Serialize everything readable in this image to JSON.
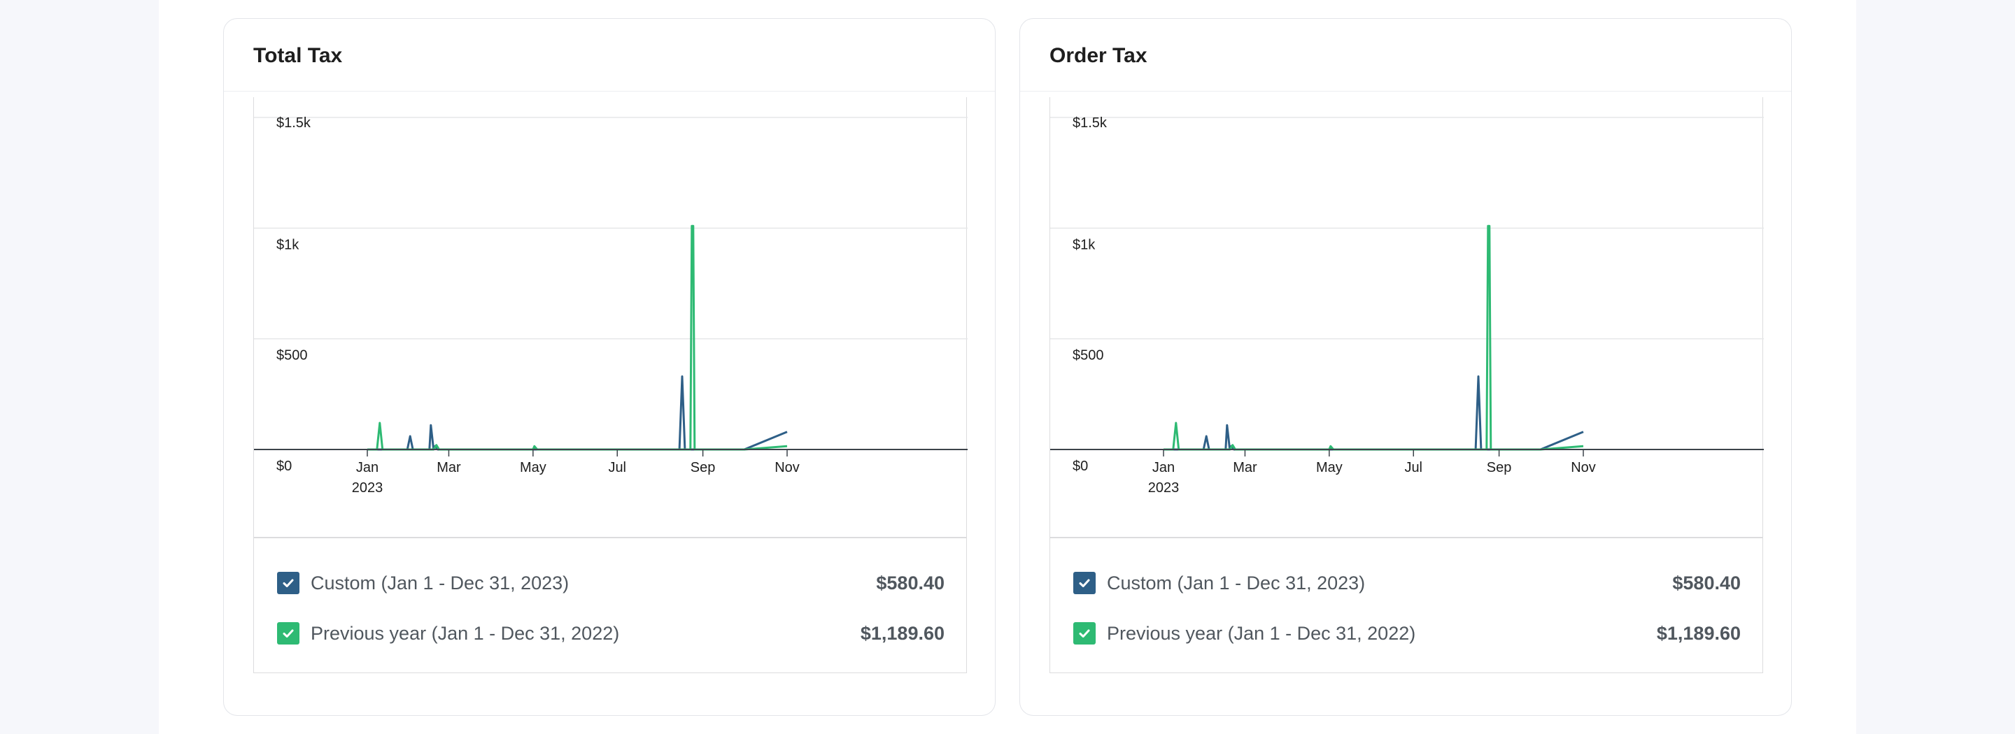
{
  "colors": {
    "primary_series": "#2e5f87",
    "comparison_series": "#2eba73"
  },
  "cards": [
    {
      "title": "Total Tax",
      "legend": [
        {
          "label": "Custom (Jan 1 - Dec 31, 2023)",
          "value": "$580.40",
          "color": "#2e5f87",
          "checked": true
        },
        {
          "label": "Previous year (Jan 1 - Dec 31, 2022)",
          "value": "$1,189.60",
          "color": "#2eba73",
          "checked": true
        }
      ]
    },
    {
      "title": "Order Tax",
      "legend": [
        {
          "label": "Custom (Jan 1 - Dec 31, 2023)",
          "value": "$580.40",
          "color": "#2e5f87",
          "checked": true
        },
        {
          "label": "Previous year (Jan 1 - Dec 31, 2022)",
          "value": "$1,189.60",
          "color": "#2eba73",
          "checked": true
        }
      ]
    }
  ],
  "chart_data": [
    {
      "type": "line",
      "title": "Total Tax",
      "xlabel": "",
      "ylabel": "",
      "ylim": [
        0,
        1500
      ],
      "xlim": [
        "2023-01-01",
        "2023-11-10"
      ],
      "y_ticks": [
        {
          "value": 0,
          "label": "$0"
        },
        {
          "value": 500,
          "label": "$500"
        },
        {
          "value": 1000,
          "label": "$1k"
        },
        {
          "value": 1500,
          "label": "$1.5k"
        }
      ],
      "x_ticks": [
        {
          "date": "2023-01-01",
          "label": "Jan",
          "sub": "2023"
        },
        {
          "date": "2023-03-01",
          "label": "Mar",
          "sub": ""
        },
        {
          "date": "2023-05-01",
          "label": "May",
          "sub": ""
        },
        {
          "date": "2023-07-01",
          "label": "Jul",
          "sub": ""
        },
        {
          "date": "2023-09-01",
          "label": "Sep",
          "sub": ""
        },
        {
          "date": "2023-11-01",
          "label": "Nov",
          "sub": ""
        }
      ],
      "grid": true,
      "series": [
        {
          "name": "Custom (Jan 1 - Dec 31, 2023)",
          "color": "#2e5f87",
          "points": [
            [
              "2023-01-01",
              0
            ],
            [
              "2023-01-30",
              0
            ],
            [
              "2023-02-01",
              60
            ],
            [
              "2023-02-03",
              0
            ],
            [
              "2023-02-15",
              0
            ],
            [
              "2023-02-16",
              110
            ],
            [
              "2023-02-18",
              0
            ],
            [
              "2023-02-19",
              15
            ],
            [
              "2023-02-21",
              0
            ],
            [
              "2023-08-15",
              0
            ],
            [
              "2023-08-17",
              330
            ],
            [
              "2023-08-19",
              0
            ],
            [
              "2023-10-01",
              0
            ],
            [
              "2023-11-01",
              80
            ]
          ]
        },
        {
          "name": "Previous year (Jan 1 - Dec 31, 2022)",
          "color": "#2eba73",
          "points": [
            [
              "2023-01-01",
              0
            ],
            [
              "2023-01-08",
              0
            ],
            [
              "2023-01-10",
              120
            ],
            [
              "2023-01-12",
              0
            ],
            [
              "2023-02-18",
              0
            ],
            [
              "2023-02-20",
              20
            ],
            [
              "2023-02-22",
              0
            ],
            [
              "2023-05-01",
              0
            ],
            [
              "2023-05-02",
              15
            ],
            [
              "2023-05-04",
              0
            ],
            [
              "2023-08-23",
              0
            ],
            [
              "2023-08-24",
              1010
            ],
            [
              "2023-08-25",
              1010
            ],
            [
              "2023-08-26",
              0
            ],
            [
              "2023-10-01",
              0
            ],
            [
              "2023-11-01",
              15
            ]
          ]
        }
      ]
    },
    {
      "type": "line",
      "title": "Order Tax",
      "xlabel": "",
      "ylabel": "",
      "ylim": [
        0,
        1500
      ],
      "xlim": [
        "2023-01-01",
        "2023-11-10"
      ],
      "y_ticks": [
        {
          "value": 0,
          "label": "$0"
        },
        {
          "value": 500,
          "label": "$500"
        },
        {
          "value": 1000,
          "label": "$1k"
        },
        {
          "value": 1500,
          "label": "$1.5k"
        }
      ],
      "x_ticks": [
        {
          "date": "2023-01-01",
          "label": "Jan",
          "sub": "2023"
        },
        {
          "date": "2023-03-01",
          "label": "Mar",
          "sub": ""
        },
        {
          "date": "2023-05-01",
          "label": "May",
          "sub": ""
        },
        {
          "date": "2023-07-01",
          "label": "Jul",
          "sub": ""
        },
        {
          "date": "2023-09-01",
          "label": "Sep",
          "sub": ""
        },
        {
          "date": "2023-11-01",
          "label": "Nov",
          "sub": ""
        }
      ],
      "grid": true,
      "series": [
        {
          "name": "Custom (Jan 1 - Dec 31, 2023)",
          "color": "#2e5f87",
          "points": [
            [
              "2023-01-01",
              0
            ],
            [
              "2023-01-30",
              0
            ],
            [
              "2023-02-01",
              60
            ],
            [
              "2023-02-03",
              0
            ],
            [
              "2023-02-15",
              0
            ],
            [
              "2023-02-16",
              110
            ],
            [
              "2023-02-18",
              0
            ],
            [
              "2023-02-19",
              15
            ],
            [
              "2023-02-21",
              0
            ],
            [
              "2023-08-15",
              0
            ],
            [
              "2023-08-17",
              330
            ],
            [
              "2023-08-19",
              0
            ],
            [
              "2023-10-01",
              0
            ],
            [
              "2023-11-01",
              80
            ]
          ]
        },
        {
          "name": "Previous year (Jan 1 - Dec 31, 2022)",
          "color": "#2eba73",
          "points": [
            [
              "2023-01-01",
              0
            ],
            [
              "2023-01-08",
              0
            ],
            [
              "2023-01-10",
              120
            ],
            [
              "2023-01-12",
              0
            ],
            [
              "2023-02-18",
              0
            ],
            [
              "2023-02-20",
              20
            ],
            [
              "2023-02-22",
              0
            ],
            [
              "2023-05-01",
              0
            ],
            [
              "2023-05-02",
              15
            ],
            [
              "2023-05-04",
              0
            ],
            [
              "2023-08-23",
              0
            ],
            [
              "2023-08-24",
              1010
            ],
            [
              "2023-08-25",
              1010
            ],
            [
              "2023-08-26",
              0
            ],
            [
              "2023-10-01",
              0
            ],
            [
              "2023-11-01",
              15
            ]
          ]
        }
      ]
    }
  ]
}
